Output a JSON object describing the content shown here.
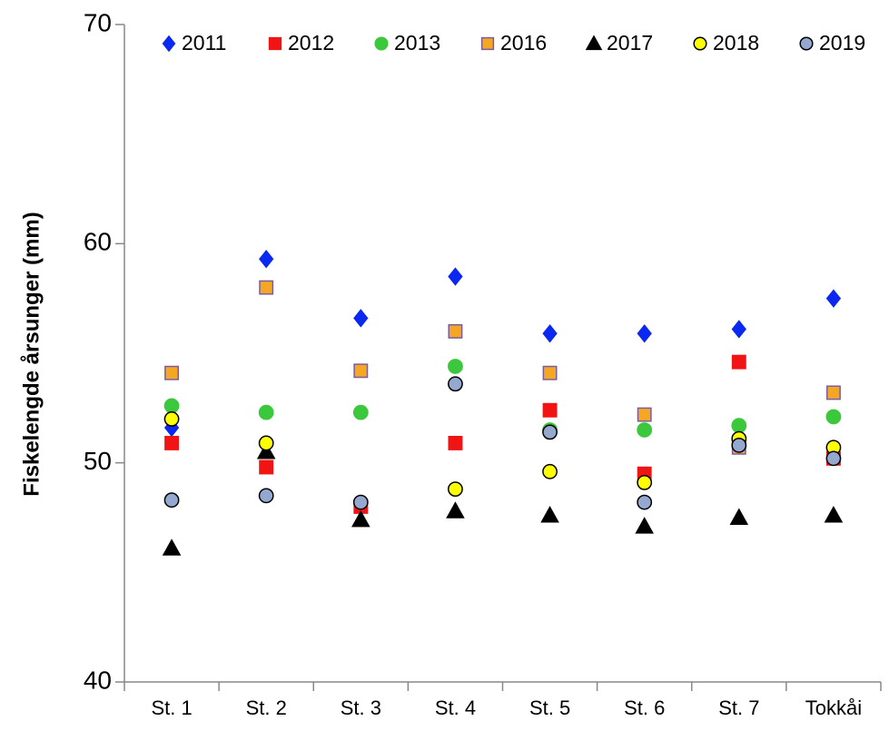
{
  "chart_data": {
    "type": "scatter",
    "y_label": "Fiskelengde årsunger (mm)",
    "categories": [
      "St. 1",
      "St. 2",
      "St. 3",
      "St. 4",
      "St. 5",
      "St. 6",
      "St. 7",
      "Tokkåi"
    ],
    "ylim": [
      40,
      70
    ],
    "yticks": [
      40,
      50,
      60,
      70
    ],
    "legend": "top",
    "series": [
      {
        "name": "2011",
        "color": "#0a28f0",
        "edgecolor": "#0a28f0",
        "marker": "diamond",
        "values": [
          51.6,
          59.3,
          56.6,
          58.5,
          55.9,
          55.9,
          56.1,
          57.5
        ]
      },
      {
        "name": "2012",
        "color": "#f01414",
        "edgecolor": "#f01414",
        "marker": "square",
        "values": [
          50.9,
          49.8,
          48.0,
          50.9,
          52.4,
          49.5,
          54.6,
          50.2
        ]
      },
      {
        "name": "2013",
        "color": "#3cc83c",
        "edgecolor": "#3cc83c",
        "marker": "circle",
        "values": [
          52.6,
          52.3,
          52.3,
          54.4,
          51.5,
          51.5,
          51.7,
          52.1
        ]
      },
      {
        "name": "2016",
        "color": "#f5a623",
        "edgecolor": "#7a5ca0",
        "marker": "square",
        "values": [
          54.1,
          58.0,
          54.2,
          56.0,
          54.1,
          52.2,
          50.7,
          53.2
        ]
      },
      {
        "name": "2017",
        "color": "#000000",
        "edgecolor": "#000000",
        "marker": "triangle",
        "values": [
          46.1,
          50.5,
          47.4,
          47.8,
          47.6,
          47.1,
          47.5,
          47.6
        ]
      },
      {
        "name": "2018",
        "color": "#ffff00",
        "edgecolor": "#000000",
        "marker": "circle",
        "values": [
          52.0,
          50.9,
          null,
          48.8,
          49.6,
          49.1,
          51.1,
          50.7
        ]
      },
      {
        "name": "2019",
        "color": "#95a8d0",
        "edgecolor": "#000000",
        "marker": "circle",
        "values": [
          48.3,
          48.5,
          48.2,
          53.6,
          51.4,
          48.2,
          50.8,
          50.2
        ]
      }
    ]
  }
}
